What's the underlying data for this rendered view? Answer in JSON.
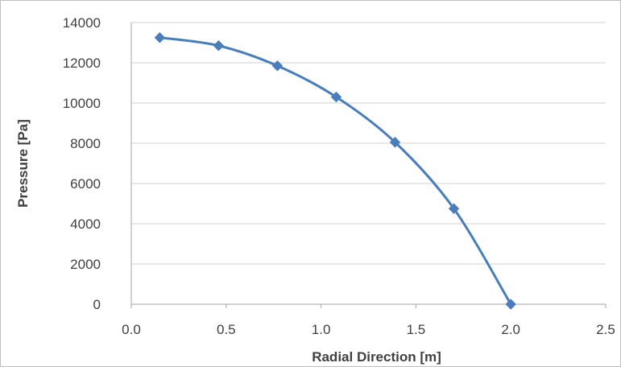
{
  "chart_data": {
    "type": "line",
    "title": "",
    "xlabel": "Radial Direction [m]",
    "ylabel": "Pressure [Pa]",
    "xlim": [
      0.0,
      2.5
    ],
    "ylim": [
      0,
      14000
    ],
    "x_ticks": [
      "0.0",
      "0.5",
      "1.0",
      "1.5",
      "2.0",
      "2.5"
    ],
    "y_ticks": [
      "0",
      "2000",
      "4000",
      "6000",
      "8000",
      "10000",
      "12000",
      "14000"
    ],
    "grid": "horizontal",
    "legend": "none",
    "smooth": true,
    "series": [
      {
        "x": [
          0.15,
          0.46,
          0.77,
          1.08,
          1.39,
          1.7,
          2.0
        ],
        "y": [
          13250,
          12850,
          11850,
          10300,
          8050,
          4750,
          0
        ],
        "color": "#4a7ebb",
        "marker": "diamond"
      }
    ]
  }
}
